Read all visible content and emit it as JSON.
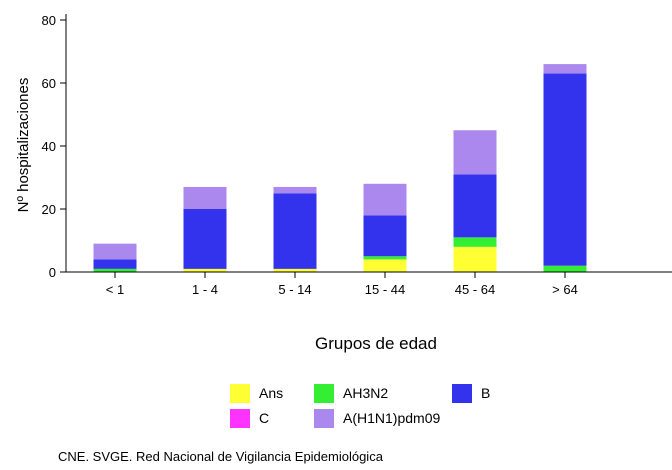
{
  "chart_data": {
    "type": "bar",
    "stacked": true,
    "categories": [
      "< 1",
      "1 - 4",
      "5 - 14",
      "15 - 44",
      "45 - 64",
      "> 64"
    ],
    "series": [
      {
        "name": "Ans",
        "color": "#ffff33",
        "values": [
          0,
          1,
          1,
          4,
          8,
          0
        ]
      },
      {
        "name": "AH3N2",
        "color": "#33ee33",
        "values": [
          1,
          0,
          0,
          1,
          3,
          2
        ]
      },
      {
        "name": "C",
        "color": "#ff33ff",
        "values": [
          0,
          0,
          0,
          0,
          0,
          0
        ]
      },
      {
        "name": "B",
        "color": "#3333ee",
        "values": [
          3,
          19,
          24,
          13,
          20,
          61
        ]
      },
      {
        "name": "A(H1N1)pdm09",
        "color": "#aa88ee",
        "values": [
          5,
          7,
          2,
          10,
          14,
          3
        ]
      }
    ],
    "xlabel": "Grupos de edad",
    "ylabel": "Nº hospitalizaciones",
    "ylim": [
      0,
      80
    ],
    "yticks": [
      0,
      20,
      40,
      60,
      80
    ],
    "grid": false,
    "legend_position": "bottom",
    "legend_order": [
      "Ans",
      "AH3N2",
      "B",
      "C",
      "A(H1N1)pdm09"
    ]
  },
  "source_note": "CNE. SVGE. Red Nacional de Vigilancia Epidemiológica"
}
